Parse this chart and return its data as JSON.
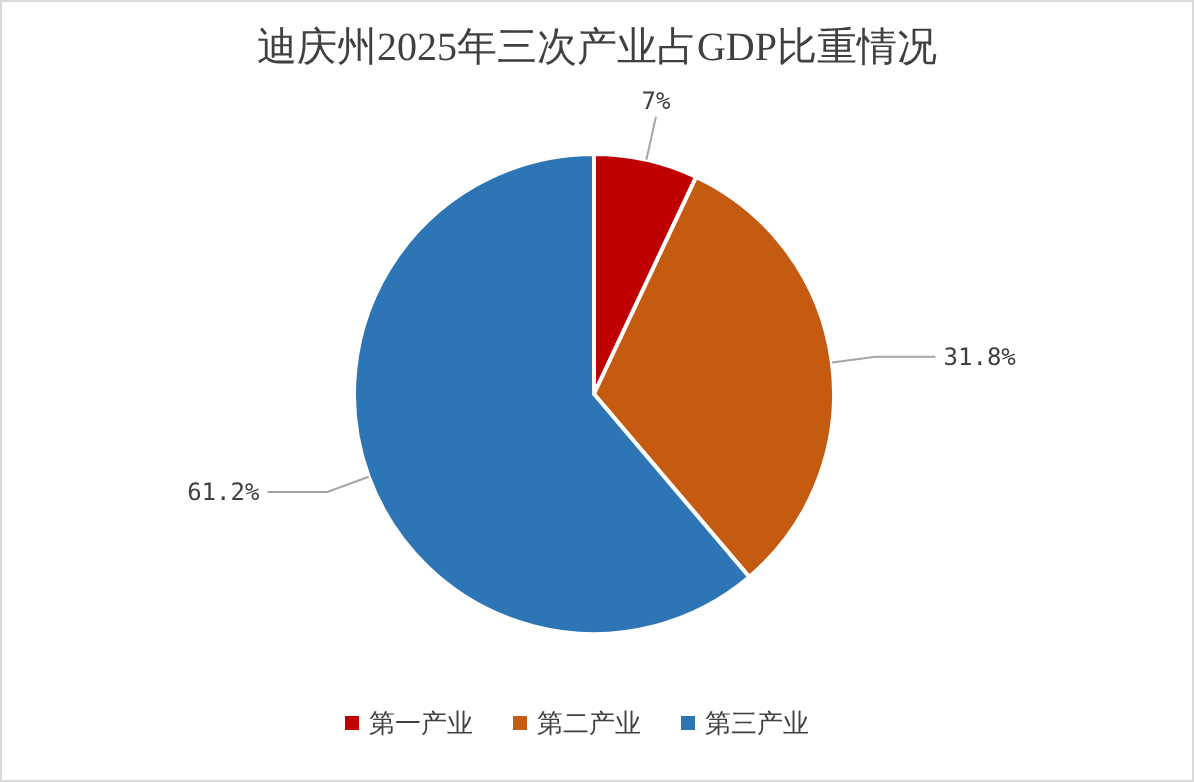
{
  "chart_data": {
    "type": "pie",
    "title": "迪庆州2025年三次产业占GDP比重情况",
    "categories": [
      "第一产业",
      "第二产业",
      "第三产业"
    ],
    "values": [
      7,
      31.8,
      61.2
    ],
    "colors": [
      "#c00000",
      "#c55a11",
      "#2e75b6"
    ],
    "value_labels": [
      "7%",
      "31.8%",
      "61.2%"
    ],
    "legend": "bottom"
  }
}
